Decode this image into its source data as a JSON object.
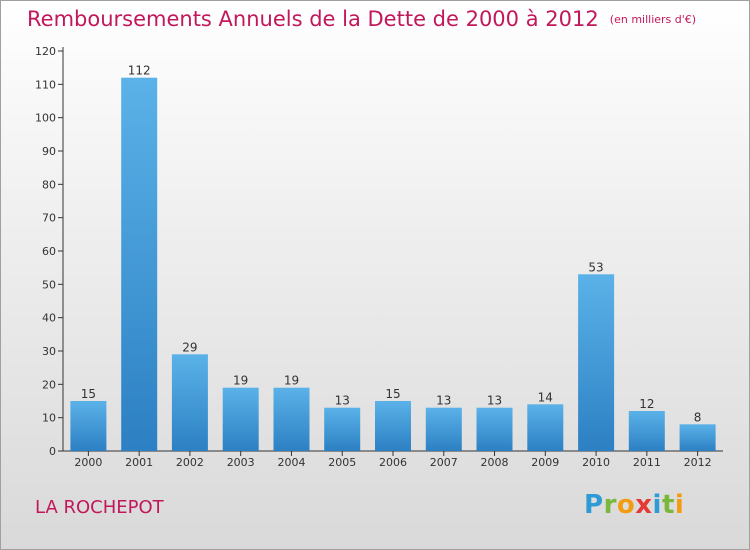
{
  "title": "Remboursements Annuels de la Dette de 2000 à 2012",
  "subtitle": "(en milliers d'€)",
  "commune": "LA ROCHEPOT",
  "brand": {
    "text": "Proxiti",
    "letters": [
      {
        "char": "P",
        "color": "#2e9bd6"
      },
      {
        "char": "r",
        "color": "#79b83a"
      },
      {
        "char": "o",
        "color": "#f39c12"
      },
      {
        "char": "x",
        "color": "#e53935"
      },
      {
        "char": "i",
        "color": "#2e9bd6"
      },
      {
        "char": "t",
        "color": "#79b83a"
      },
      {
        "char": "i",
        "color": "#f39c12"
      }
    ]
  },
  "colors": {
    "title": "#c2185b",
    "bar_light": "#5bb2e8",
    "bar_dark": "#2c80c3",
    "axis": "#333333"
  },
  "chart_data": {
    "type": "bar",
    "categories": [
      "2000",
      "2001",
      "2002",
      "2003",
      "2004",
      "2005",
      "2006",
      "2007",
      "2008",
      "2009",
      "2010",
      "2011",
      "2012"
    ],
    "values": [
      15,
      112,
      29,
      19,
      19,
      13,
      15,
      13,
      13,
      14,
      53,
      12,
      8
    ],
    "ylim": [
      0,
      120
    ],
    "yticks": [
      0,
      10,
      20,
      30,
      40,
      50,
      60,
      70,
      80,
      90,
      100,
      110,
      120
    ],
    "xlabel": "",
    "ylabel": "",
    "grid": false,
    "data_labels": true
  }
}
